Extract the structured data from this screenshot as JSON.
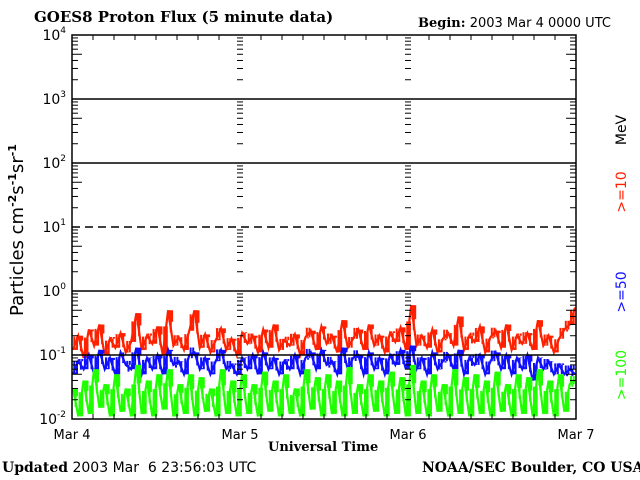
{
  "chart_data": {
    "type": "line",
    "title": "GOES8 Proton Flux (5 minute data)",
    "begin_label": "Begin:",
    "begin_value": "2003 Mar 4 0000 UTC",
    "xlabel": "Universal Time",
    "ylabel": "Particles cm",
    "ylabel_parts": [
      "Particles cm",
      "-2",
      "s",
      "-1",
      "sr",
      "-1"
    ],
    "yscale": "log",
    "ylim": [
      0.01,
      10000
    ],
    "ytick_labels": [
      {
        "base": "10",
        "exp": "-2",
        "value": 0.01
      },
      {
        "base": "10",
        "exp": "-1",
        "value": 0.1
      },
      {
        "base": "10",
        "exp": "0",
        "value": 1
      },
      {
        "base": "10",
        "exp": "1",
        "value": 10
      },
      {
        "base": "10",
        "exp": "2",
        "value": 100
      },
      {
        "base": "10",
        "exp": "3",
        "value": 1000
      },
      {
        "base": "10",
        "exp": "4",
        "value": 10000
      }
    ],
    "xlim_days": [
      0,
      3
    ],
    "xtick_labels": [
      "Mar 4",
      "Mar 5",
      "Mar 6",
      "Mar 7"
    ],
    "legend_unit": "MeV",
    "series": [
      {
        "name": ">=10",
        "color": "#ff2000",
        "values": [
          0.12,
          0.2,
          0.09,
          0.25,
          0.14,
          0.3,
          0.1,
          0.18,
          0.13,
          0.22,
          0.11,
          0.16,
          0.45,
          0.12,
          0.2,
          0.15,
          0.28,
          0.1,
          0.5,
          0.14,
          0.19,
          0.12,
          0.24,
          0.5,
          0.13,
          0.21,
          0.11,
          0.17,
          0.26,
          0.12,
          0.18,
          0.1,
          0.22,
          0.15,
          0.2,
          0.11,
          0.25,
          0.13,
          0.3,
          0.12,
          0.17,
          0.14,
          0.21,
          0.1,
          0.19,
          0.24,
          0.12,
          0.28,
          0.15,
          0.2,
          0.11,
          0.35,
          0.13,
          0.18,
          0.25,
          0.12,
          0.3,
          0.14,
          0.2,
          0.11,
          0.22,
          0.16,
          0.27,
          0.12,
          0.6,
          0.14,
          0.2,
          0.13,
          0.25,
          0.11,
          0.18,
          0.22,
          0.14,
          0.4,
          0.12,
          0.2,
          0.16,
          0.28,
          0.11,
          0.19,
          0.24,
          0.13,
          0.3,
          0.12,
          0.2,
          0.15,
          0.22,
          0.12,
          0.35,
          0.14,
          0.2,
          0.11,
          0.18,
          0.25,
          0.3,
          0.55
        ]
      },
      {
        "name": ">=50",
        "color": "#1010ff",
        "values": [
          0.05,
          0.08,
          0.06,
          0.1,
          0.05,
          0.12,
          0.06,
          0.09,
          0.05,
          0.11,
          0.07,
          0.06,
          0.13,
          0.05,
          0.09,
          0.06,
          0.1,
          0.05,
          0.12,
          0.07,
          0.08,
          0.05,
          0.1,
          0.11,
          0.06,
          0.09,
          0.05,
          0.08,
          0.12,
          0.06,
          0.07,
          0.05,
          0.09,
          0.06,
          0.1,
          0.05,
          0.11,
          0.06,
          0.09,
          0.05,
          0.08,
          0.06,
          0.1,
          0.05,
          0.09,
          0.11,
          0.06,
          0.12,
          0.07,
          0.08,
          0.05,
          0.13,
          0.06,
          0.09,
          0.1,
          0.05,
          0.11,
          0.06,
          0.09,
          0.05,
          0.1,
          0.07,
          0.12,
          0.06,
          0.14,
          0.06,
          0.09,
          0.05,
          0.11,
          0.06,
          0.08,
          0.1,
          0.06,
          0.12,
          0.05,
          0.09,
          0.07,
          0.1,
          0.05,
          0.08,
          0.11,
          0.06,
          0.1,
          0.05,
          0.09,
          0.06,
          0.1,
          0.04,
          0.09,
          0.06,
          0.08,
          0.05,
          0.07,
          0.05,
          0.06,
          0.05
        ]
      },
      {
        "name": ">=100",
        "color": "#20ff00",
        "values": [
          0.03,
          0.011,
          0.04,
          0.012,
          0.06,
          0.015,
          0.035,
          0.011,
          0.05,
          0.013,
          0.03,
          0.011,
          0.07,
          0.012,
          0.04,
          0.011,
          0.05,
          0.014,
          0.06,
          0.011,
          0.035,
          0.012,
          0.05,
          0.011,
          0.045,
          0.013,
          0.03,
          0.011,
          0.06,
          0.012,
          0.04,
          0.011,
          0.05,
          0.012,
          0.035,
          0.011,
          0.055,
          0.013,
          0.04,
          0.011,
          0.05,
          0.012,
          0.03,
          0.011,
          0.06,
          0.014,
          0.045,
          0.011,
          0.05,
          0.012,
          0.04,
          0.011,
          0.065,
          0.012,
          0.035,
          0.011,
          0.05,
          0.013,
          0.04,
          0.011,
          0.055,
          0.012,
          0.045,
          0.011,
          0.07,
          0.012,
          0.04,
          0.011,
          0.05,
          0.013,
          0.035,
          0.011,
          0.06,
          0.012,
          0.045,
          0.011,
          0.05,
          0.012,
          0.04,
          0.011,
          0.055,
          0.013,
          0.035,
          0.011,
          0.05,
          0.012,
          0.045,
          0.011,
          0.06,
          0.012,
          0.04,
          0.011,
          0.05,
          0.013,
          0.035,
          0.04
        ]
      }
    ]
  },
  "footer": {
    "updated_label": "Updated",
    "updated_value": "2003 Mar  6 23:56:03 UTC",
    "credit": "NOAA/SEC Boulder, CO USA"
  }
}
